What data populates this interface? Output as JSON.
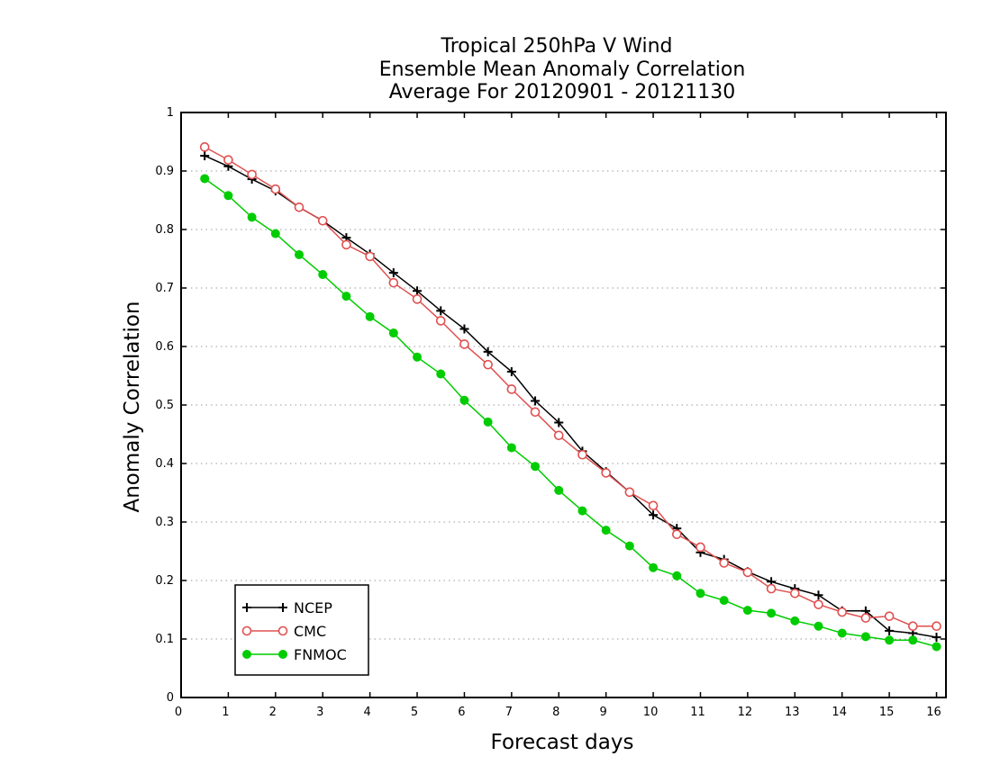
{
  "chart_data": {
    "type": "line",
    "title_lines": [
      "Tropical 250hPa V Wind",
      "Ensemble Mean Anomaly Correlation",
      "Average For 20120901 - 20121130"
    ],
    "xlabel": "Forecast days",
    "ylabel": "Anomaly Correlation",
    "xlim": [
      0,
      16.2
    ],
    "ylim": [
      0,
      1
    ],
    "xticks": [
      0,
      1,
      2,
      3,
      4,
      5,
      6,
      7,
      8,
      9,
      10,
      11,
      12,
      13,
      14,
      15,
      16
    ],
    "yticks": [
      0,
      0.1,
      0.2,
      0.3,
      0.4,
      0.5,
      0.6,
      0.7,
      0.8,
      0.9,
      1
    ],
    "grid": "horizontal dotted",
    "legend_position": "bottom-left",
    "x": [
      0.5,
      1,
      1.5,
      2,
      2.5,
      3,
      3.5,
      4,
      4.5,
      5,
      5.5,
      6,
      6.5,
      7,
      7.5,
      8,
      8.5,
      9,
      9.5,
      10,
      10.5,
      11,
      11.5,
      12,
      12.5,
      13,
      13.5,
      14,
      14.5,
      15,
      15.5,
      16
    ],
    "series": [
      {
        "name": "NCEP",
        "color": "#000000",
        "marker": "plus",
        "values": [
          0.926,
          0.908,
          0.886,
          0.866,
          0.838,
          0.815,
          0.786,
          0.758,
          0.726,
          0.695,
          0.661,
          0.63,
          0.591,
          0.557,
          0.507,
          0.47,
          0.421,
          0.386,
          0.351,
          0.312,
          0.289,
          0.248,
          0.236,
          0.215,
          0.198,
          0.186,
          0.175,
          0.148,
          0.148,
          0.114,
          0.11,
          0.103
        ]
      },
      {
        "name": "CMC",
        "color": "#e05050",
        "marker": "open-circle",
        "values": [
          0.941,
          0.919,
          0.894,
          0.869,
          0.838,
          0.815,
          0.774,
          0.754,
          0.709,
          0.681,
          0.644,
          0.604,
          0.569,
          0.527,
          0.488,
          0.448,
          0.415,
          0.384,
          0.351,
          0.328,
          0.279,
          0.257,
          0.23,
          0.214,
          0.186,
          0.178,
          0.159,
          0.146,
          0.136,
          0.139,
          0.122,
          0.122
        ]
      },
      {
        "name": "FNMOC",
        "color": "#00cc00",
        "marker": "filled-circle",
        "values": [
          0.887,
          0.858,
          0.821,
          0.793,
          0.757,
          0.723,
          0.686,
          0.651,
          0.623,
          0.582,
          0.553,
          0.508,
          0.471,
          0.427,
          0.395,
          0.354,
          0.319,
          0.286,
          0.259,
          0.222,
          0.208,
          0.178,
          0.166,
          0.149,
          0.144,
          0.131,
          0.122,
          0.11,
          0.104,
          0.098,
          0.098,
          0.087
        ]
      }
    ]
  }
}
